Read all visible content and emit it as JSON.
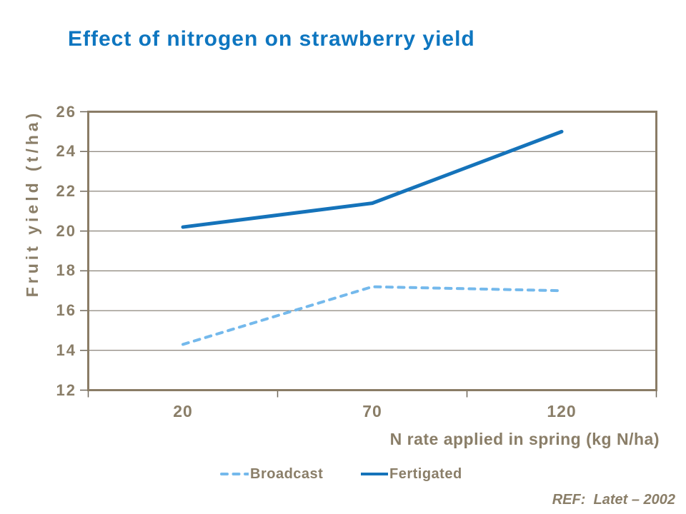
{
  "chart_data": {
    "type": "line",
    "title": "Effect of nitrogen on strawberry yield",
    "xlabel": "N rate applied in spring (kg N/ha)",
    "ylabel": "Fruit yield (t/ha)",
    "categories": [
      "20",
      "70",
      "120"
    ],
    "series": [
      {
        "name": "Broadcast",
        "values": [
          14.3,
          17.2,
          17.0
        ],
        "color": "#74B9EC",
        "line_style": "dashed"
      },
      {
        "name": "Fertigated",
        "values": [
          20.2,
          21.4,
          25.0
        ],
        "color": "#1573BA",
        "line_style": "solid"
      }
    ],
    "ylim": [
      12,
      26
    ],
    "ytick_step": 2,
    "grid": true,
    "legend_position": "bottom-center",
    "colors": {
      "title": "#0E76C0",
      "axis": "#8A7C66",
      "grid": "#6F675A",
      "labels": "#8A7E68"
    }
  },
  "ref_label": "REF:  Latet – 2002"
}
